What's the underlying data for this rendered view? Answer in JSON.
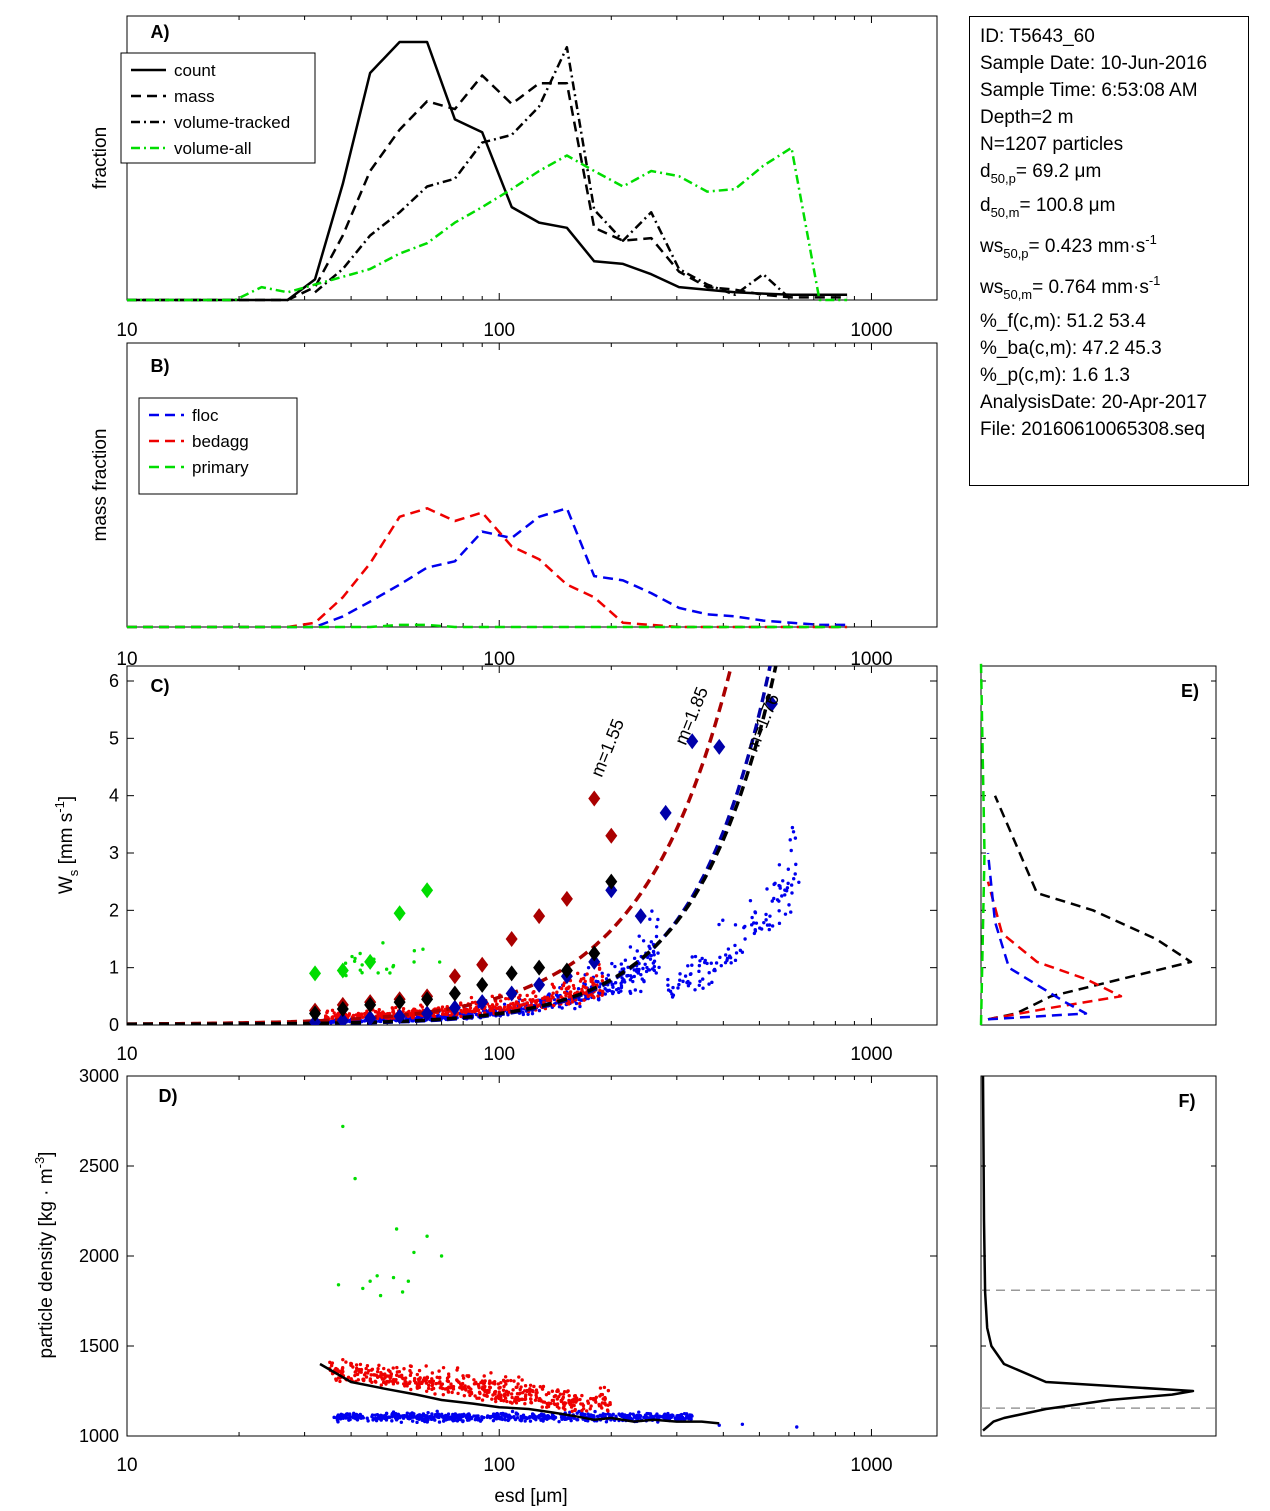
{
  "info": {
    "id": "ID: T5643_60",
    "sample_date": "Sample Date: 10-Jun-2016",
    "sample_time": "Sample Time:  6:53:08 AM",
    "depth": "Depth=2 m",
    "n": "N=1207 particles",
    "d50p_pre": "d",
    "d50p_sub": "50,p",
    "d50p_val": "=  69.2 μm",
    "d50m_pre": "d",
    "d50m_sub": "50,m",
    "d50m_val": "= 100.8 μm",
    "ws50p_pre": "ws",
    "ws50p_sub": "50,p",
    "ws50p_val": "= 0.423 mm·s",
    "ws50p_sup": "-1",
    "ws50m_pre": "ws",
    "ws50m_sub": "50,m",
    "ws50m_val": "= 0.764 mm·s",
    "ws50m_sup": "-1",
    "pf": "%_f(c,m): 51.2 53.4",
    "pba": "%_ba(c,m): 47.2 45.3",
    "pp": "%_p(c,m): 1.6 1.3",
    "analysis_date": "AnalysisDate: 20-Apr-2017",
    "file": "File: 20160610065308.seq"
  },
  "colors": {
    "black": "#000000",
    "green": "#00dd00",
    "blue": "#0000ee",
    "red": "#ee0000",
    "darkred": "#aa0000",
    "darkblue": "#0000aa",
    "gray": "#999999"
  },
  "chart_data": [
    {
      "panel": "A)",
      "type": "line",
      "xscale": "log",
      "xlim": [
        10,
        1500
      ],
      "xticks": [
        "10",
        "100",
        "1000"
      ],
      "ylabel": "fraction",
      "legend_placement": "top-left",
      "series": [
        {
          "name": "count",
          "style": "solid",
          "color": "#000000",
          "x": [
            10,
            13,
            16,
            19.5,
            23,
            27,
            32,
            38,
            45,
            54,
            64,
            76,
            90,
            108,
            128,
            152,
            180,
            215,
            256,
            304,
            362,
            430,
            512,
            610,
            725,
            860
          ],
          "y": [
            0,
            0,
            0,
            0,
            0,
            0,
            0.08,
            0.45,
            0.88,
            1.0,
            1.0,
            0.7,
            0.65,
            0.36,
            0.3,
            0.28,
            0.15,
            0.14,
            0.1,
            0.05,
            0.04,
            0.03,
            0.025,
            0.02,
            0.02,
            0.02
          ]
        },
        {
          "name": "mass",
          "style": "dashed",
          "color": "#000000",
          "x": [
            10,
            13,
            16,
            19.5,
            23,
            27,
            32,
            38,
            45,
            54,
            64,
            76,
            90,
            108,
            128,
            152,
            180,
            215,
            256,
            304,
            362,
            430,
            512,
            610,
            725,
            860
          ],
          "y": [
            0,
            0,
            0,
            0,
            0,
            0,
            0.05,
            0.25,
            0.5,
            0.66,
            0.77,
            0.74,
            0.87,
            0.76,
            0.84,
            0.84,
            0.28,
            0.23,
            0.24,
            0.11,
            0.05,
            0.04,
            0.02,
            0.01,
            0.01,
            0.01
          ]
        },
        {
          "name": "volume-tracked",
          "style": "dashdot",
          "color": "#000000",
          "x": [
            32,
            38,
            45,
            54,
            64,
            76,
            90,
            108,
            128,
            152,
            180,
            215,
            256,
            304,
            362,
            430,
            512,
            610
          ],
          "y": [
            0.03,
            0.12,
            0.25,
            0.34,
            0.44,
            0.47,
            0.61,
            0.64,
            0.75,
            0.98,
            0.35,
            0.23,
            0.34,
            0.12,
            0.06,
            0.02,
            0.1,
            0.0
          ]
        },
        {
          "name": "volume-all",
          "style": "dashdot",
          "color": "#00dd00",
          "x": [
            10,
            13,
            16,
            19.5,
            23,
            27,
            32,
            38,
            45,
            54,
            64,
            76,
            90,
            108,
            128,
            152,
            180,
            215,
            256,
            304,
            362,
            430,
            512,
            610,
            725,
            860
          ],
          "y": [
            0,
            0,
            0,
            0,
            0.05,
            0.03,
            0.06,
            0.09,
            0.12,
            0.18,
            0.22,
            0.3,
            0.36,
            0.43,
            0.5,
            0.56,
            0.5,
            0.44,
            0.5,
            0.48,
            0.42,
            0.43,
            0.52,
            0.59,
            0.0,
            0.0
          ]
        }
      ]
    },
    {
      "panel": "B)",
      "type": "line",
      "xscale": "log",
      "xlim": [
        10,
        1500
      ],
      "xticks": [
        "10",
        "100",
        "1000"
      ],
      "ylabel": "mass fraction",
      "legend_placement": "top-left",
      "series": [
        {
          "name": "floc",
          "style": "dashed",
          "color": "#0000ee",
          "x": [
            10,
            13,
            16,
            19.5,
            23,
            27,
            32,
            38,
            45,
            54,
            64,
            76,
            90,
            108,
            128,
            152,
            180,
            215,
            256,
            304,
            362,
            430,
            512,
            610,
            725,
            860
          ],
          "y": [
            0,
            0,
            0,
            0,
            0,
            0,
            0,
            0.05,
            0.12,
            0.2,
            0.28,
            0.31,
            0.45,
            0.42,
            0.52,
            0.56,
            0.24,
            0.22,
            0.16,
            0.09,
            0.06,
            0.05,
            0.03,
            0.02,
            0.01,
            0.01
          ]
        },
        {
          "name": "bedagg",
          "style": "dashed",
          "color": "#ee0000",
          "x": [
            10,
            13,
            16,
            19.5,
            23,
            27,
            32,
            38,
            45,
            54,
            64,
            76,
            90,
            108,
            128,
            152,
            180,
            215,
            256,
            304,
            362,
            430,
            512,
            610,
            725,
            860
          ],
          "y": [
            0,
            0,
            0,
            0,
            0,
            0,
            0.02,
            0.14,
            0.3,
            0.52,
            0.56,
            0.5,
            0.54,
            0.38,
            0.32,
            0.2,
            0.14,
            0.02,
            0.01,
            0.0,
            0.0,
            0.0,
            0.0,
            0.0,
            0.0,
            0.0
          ]
        },
        {
          "name": "primary",
          "style": "dashed",
          "color": "#00dd00",
          "x": [
            10,
            13,
            16,
            19.5,
            23,
            27,
            32,
            38,
            45,
            54,
            64,
            76,
            90,
            108,
            128,
            152,
            180,
            215,
            256,
            304,
            362,
            430,
            512,
            610,
            725,
            860
          ],
          "y": [
            0,
            0,
            0,
            0,
            0,
            0,
            0,
            0,
            0,
            0.01,
            0.01,
            0,
            0,
            0,
            0,
            0,
            0,
            0,
            0,
            0,
            0,
            0,
            0,
            0,
            0,
            0
          ]
        }
      ]
    },
    {
      "panel": "C)",
      "type": "scatter",
      "xscale": "log",
      "xlim": [
        10,
        1500
      ],
      "ylim": [
        0,
        6.3
      ],
      "xticks": [
        "10",
        "100",
        "1000"
      ],
      "yticks": [
        "0",
        "1",
        "2",
        "3",
        "4",
        "5",
        "6"
      ],
      "ylabel": "W_s [mm s^-1]",
      "annotations": [
        {
          "text": "m=1.55",
          "color": "#aa0000"
        },
        {
          "text": "m=1.85",
          "color": "#0000aa"
        },
        {
          "text": "m=1.76",
          "color": "#000000"
        }
      ],
      "fits": [
        {
          "m": 1.55,
          "color": "#aa0000",
          "coef": 0.00012
        },
        {
          "m": 1.85,
          "color": "#0000aa",
          "coef": 8.76e-06
        },
        {
          "m": 1.76,
          "color": "#000000",
          "coef": 1.57e-05
        }
      ],
      "binned_means": {
        "bedagg": {
          "color": "#aa0000",
          "x": [
            32,
            38,
            45,
            54,
            64,
            76,
            90,
            108,
            128,
            152,
            180,
            200
          ],
          "y": [
            0.25,
            0.35,
            0.4,
            0.45,
            0.5,
            0.85,
            1.05,
            1.5,
            1.9,
            2.2,
            3.95,
            3.3
          ]
        },
        "floc": {
          "color": "#0000aa",
          "x": [
            32,
            38,
            45,
            54,
            64,
            76,
            90,
            108,
            128,
            152,
            180,
            200,
            240,
            280,
            330,
            390,
            540
          ],
          "y": [
            0.05,
            0.08,
            0.12,
            0.15,
            0.2,
            0.3,
            0.4,
            0.55,
            0.7,
            0.85,
            1.1,
            2.35,
            1.9,
            3.7,
            4.95,
            4.85,
            5.6
          ]
        },
        "primary": {
          "color": "#00dd00",
          "x": [
            32,
            38,
            45,
            54,
            64
          ],
          "y": [
            0.9,
            0.95,
            1.1,
            1.95,
            2.35
          ]
        },
        "all": {
          "color": "#000000",
          "x": [
            32,
            38,
            45,
            54,
            64,
            76,
            90,
            108,
            128,
            152,
            180,
            200
          ],
          "y": [
            0.2,
            0.28,
            0.35,
            0.4,
            0.45,
            0.55,
            0.7,
            0.9,
            1.0,
            0.95,
            1.25,
            2.5
          ]
        }
      }
    },
    {
      "panel": "D)",
      "type": "scatter",
      "xscale": "log",
      "xlim": [
        10,
        1500
      ],
      "ylim": [
        1000,
        3000
      ],
      "xticks": [
        "10",
        "100",
        "1000"
      ],
      "yticks": [
        "1000",
        "1500",
        "2000",
        "2500",
        "3000"
      ],
      "xlabel": "esd [μm]",
      "ylabel": "particle density [kg · m^-3]",
      "median_line": {
        "x": [
          33,
          40,
          50,
          60,
          70,
          85,
          100,
          120,
          140,
          160,
          180,
          200,
          230,
          260,
          300,
          350,
          390
        ],
        "y": [
          1400,
          1300,
          1260,
          1230,
          1200,
          1180,
          1160,
          1150,
          1130,
          1110,
          1090,
          1100,
          1080,
          1090,
          1080,
          1080,
          1070
        ]
      }
    },
    {
      "panel": "E)",
      "type": "line",
      "ylim": [
        0,
        6.3
      ],
      "series": [
        {
          "color": "#000000",
          "style": "dashed",
          "x": [
            0.01,
            0.05,
            0.1,
            0.2,
            0.3,
            0.25,
            0.16,
            0.08,
            0.02
          ],
          "y": [
            0.1,
            0.2,
            0.5,
            0.8,
            1.1,
            1.5,
            2.0,
            2.3,
            4.0
          ]
        },
        {
          "color": "#ee0000",
          "style": "dashed",
          "x": [
            0.01,
            0.1,
            0.2,
            0.15,
            0.08,
            0.03,
            0.01
          ],
          "y": [
            0.1,
            0.3,
            0.5,
            0.8,
            1.1,
            1.6,
            2.5
          ]
        },
        {
          "color": "#0000ee",
          "style": "dashed",
          "x": [
            0.01,
            0.15,
            0.12,
            0.08,
            0.04,
            0.02,
            0.01
          ],
          "y": [
            0.1,
            0.2,
            0.4,
            0.7,
            1.0,
            1.8,
            3.0
          ]
        },
        {
          "color": "#00dd00",
          "style": "dashed",
          "x": [
            0.0,
            0.005,
            0.0
          ],
          "y": [
            0.0,
            3.0,
            6.3
          ]
        }
      ]
    },
    {
      "panel": "F)",
      "type": "line",
      "ylim": [
        1000,
        3000
      ],
      "reference_lines": [
        1155,
        1810
      ],
      "series": [
        {
          "color": "#000000",
          "style": "solid",
          "x": [
            0.0,
            0.02,
            0.05,
            0.1,
            0.3,
            0.6,
            0.9,
            1.0,
            0.3,
            0.1,
            0.04,
            0.02,
            0.01,
            0.005,
            0.0
          ],
          "y": [
            1030,
            1050,
            1080,
            1100,
            1150,
            1200,
            1230,
            1250,
            1300,
            1400,
            1500,
            1600,
            1800,
            2200,
            3000
          ]
        }
      ]
    }
  ]
}
